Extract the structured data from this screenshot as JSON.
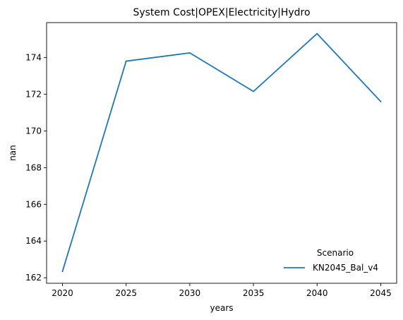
{
  "chart_data": {
    "type": "line",
    "title": "System Cost|OPEX|Electricity|Hydro",
    "xlabel": "years",
    "ylabel": "nan",
    "x": [
      2020,
      2025,
      2030,
      2035,
      2040,
      2045
    ],
    "x_ticks": [
      "2020",
      "2025",
      "2030",
      "2035",
      "2040",
      "2045"
    ],
    "y_ticks": [
      "162",
      "164",
      "166",
      "168",
      "170",
      "172",
      "174"
    ],
    "xlim": [
      2018.75,
      2046.25
    ],
    "ylim": [
      161.7,
      175.9
    ],
    "grid": false,
    "legend": {
      "title": "Scenario",
      "placement": "lower-right"
    },
    "series": [
      {
        "name": "KN2045_Bal_v4",
        "color": "#1f77b4",
        "values": [
          162.35,
          173.8,
          174.25,
          172.15,
          175.3,
          171.6
        ]
      }
    ]
  }
}
